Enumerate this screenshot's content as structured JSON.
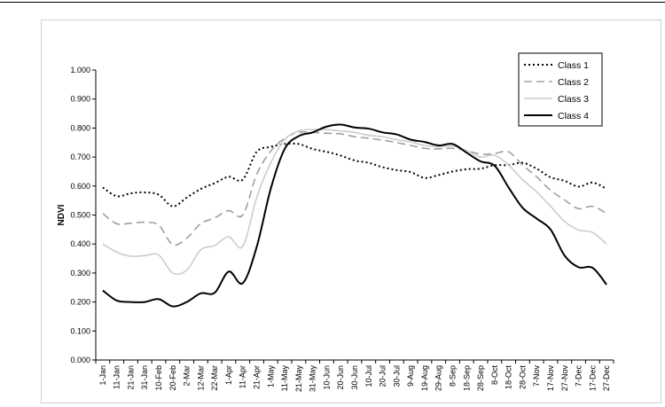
{
  "chart_data": {
    "type": "line",
    "title": "",
    "xlabel": "",
    "ylabel": "NDVI",
    "ylim": [
      0,
      1
    ],
    "yticks": [
      "0.000",
      "0.100",
      "0.200",
      "0.300",
      "0.400",
      "0.500",
      "0.600",
      "0.700",
      "0.800",
      "0.900",
      "1.000"
    ],
    "categories": [
      "1-Jan",
      "11-Jan",
      "21-Jan",
      "31-Jan",
      "10-Feb",
      "20-Feb",
      "2-Mar",
      "12-Mar",
      "22-Mar",
      "1-Apr",
      "11-Apr",
      "21-Apr",
      "1-May",
      "11-May",
      "21-May",
      "31-May",
      "10-Jun",
      "20-Jun",
      "30-Jun",
      "10-Jul",
      "20-Jul",
      "30-Jul",
      "9-Aug",
      "19-Aug",
      "29-Aug",
      "8-Sep",
      "18-Sep",
      "28-Sep",
      "8-Oct",
      "18-Oct",
      "28-Oct",
      "7-Nov",
      "17-Nov",
      "27-Nov",
      "7-Dec",
      "17-Dec",
      "27-Dec"
    ],
    "legend_position": "top-right",
    "grid": false,
    "series": [
      {
        "name": "Class 1",
        "color": "#000000",
        "dash": "dotted",
        "values": [
          0.595,
          0.565,
          0.575,
          0.578,
          0.57,
          0.53,
          0.56,
          0.59,
          0.61,
          0.632,
          0.622,
          0.718,
          0.735,
          0.745,
          0.745,
          0.728,
          0.718,
          0.705,
          0.688,
          0.68,
          0.665,
          0.655,
          0.648,
          0.628,
          0.638,
          0.65,
          0.658,
          0.66,
          0.672,
          0.672,
          0.68,
          0.66,
          0.63,
          0.618,
          0.598,
          0.612,
          0.59
        ]
      },
      {
        "name": "Class 2",
        "color": "#a0a0a0",
        "dash": "dashed",
        "values": [
          0.505,
          0.47,
          0.472,
          0.475,
          0.465,
          0.398,
          0.42,
          0.47,
          0.49,
          0.515,
          0.5,
          0.64,
          0.72,
          0.765,
          0.785,
          0.785,
          0.782,
          0.78,
          0.77,
          0.765,
          0.758,
          0.75,
          0.74,
          0.73,
          0.728,
          0.73,
          0.722,
          0.71,
          0.712,
          0.718,
          0.672,
          0.632,
          0.585,
          0.552,
          0.522,
          0.53,
          0.505
        ]
      },
      {
        "name": "Class 3",
        "color": "#cccccc",
        "dash": "solid",
        "values": [
          0.4,
          0.372,
          0.358,
          0.36,
          0.362,
          0.3,
          0.31,
          0.38,
          0.395,
          0.425,
          0.392,
          0.56,
          0.68,
          0.76,
          0.79,
          0.795,
          0.795,
          0.79,
          0.785,
          0.775,
          0.77,
          0.76,
          0.752,
          0.74,
          0.735,
          0.738,
          0.722,
          0.7,
          0.706,
          0.672,
          0.622,
          0.58,
          0.53,
          0.478,
          0.448,
          0.44,
          0.4
        ]
      },
      {
        "name": "Class 4",
        "color": "#000000",
        "dash": "solid",
        "values": [
          0.24,
          0.205,
          0.2,
          0.2,
          0.21,
          0.185,
          0.2,
          0.23,
          0.232,
          0.305,
          0.265,
          0.39,
          0.59,
          0.728,
          0.772,
          0.785,
          0.805,
          0.812,
          0.802,
          0.798,
          0.785,
          0.778,
          0.76,
          0.752,
          0.74,
          0.745,
          0.715,
          0.685,
          0.67,
          0.595,
          0.525,
          0.488,
          0.45,
          0.36,
          0.32,
          0.318,
          0.26
        ]
      }
    ]
  }
}
